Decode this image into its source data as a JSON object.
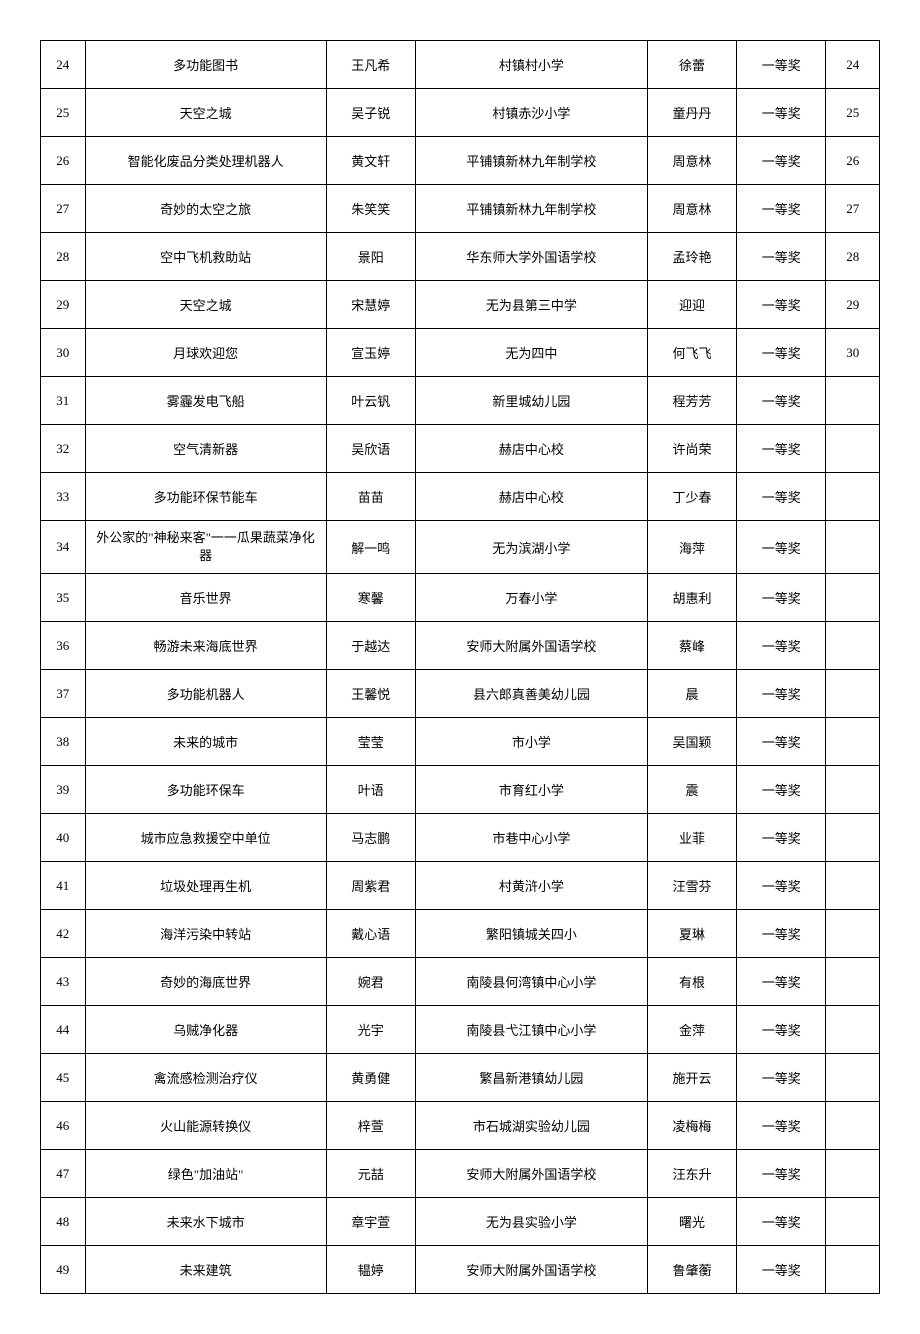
{
  "table": {
    "border_color": "#000000",
    "background_color": "#ffffff",
    "text_color": "#000000",
    "font_size": 13,
    "columns": [
      {
        "key": "idx",
        "width": "5%"
      },
      {
        "key": "title",
        "width": "27%"
      },
      {
        "key": "name",
        "width": "10%"
      },
      {
        "key": "school",
        "width": "26%"
      },
      {
        "key": "teacher",
        "width": "10%"
      },
      {
        "key": "award",
        "width": "10%"
      },
      {
        "key": "num",
        "width": "6%"
      }
    ],
    "rows": [
      {
        "idx": "24",
        "title": "多功能图书",
        "name": "王凡希",
        "school": "村镇村小学",
        "teacher": "徐蕾",
        "award": "一等奖",
        "num": "24"
      },
      {
        "idx": "25",
        "title": "天空之城",
        "name": "吴子锐",
        "school": "村镇赤沙小学",
        "teacher": "童丹丹",
        "award": "一等奖",
        "num": "25"
      },
      {
        "idx": "26",
        "title": "智能化废品分类处理机器人",
        "name": "黄文轩",
        "school": "平铺镇新林九年制学校",
        "teacher": "周意林",
        "award": "一等奖",
        "num": "26"
      },
      {
        "idx": "27",
        "title": "奇妙的太空之旅",
        "name": "朱笑笑",
        "school": "平铺镇新林九年制学校",
        "teacher": "周意林",
        "award": "一等奖",
        "num": "27"
      },
      {
        "idx": "28",
        "title": "空中飞机救助站",
        "name": "景阳",
        "school": "华东师大学外国语学校",
        "teacher": "孟玲艳",
        "award": "一等奖",
        "num": "28"
      },
      {
        "idx": "29",
        "title": "天空之城",
        "name": "宋慧婷",
        "school": "无为县第三中学",
        "teacher": "迎迎",
        "award": "一等奖",
        "num": "29"
      },
      {
        "idx": "30",
        "title": "月球欢迎您",
        "name": "宣玉婷",
        "school": "无为四中",
        "teacher": "何飞飞",
        "award": "一等奖",
        "num": "30"
      },
      {
        "idx": "31",
        "title": "雾霾发电飞船",
        "name": "叶云钒",
        "school": "新里城幼儿园",
        "teacher": "程芳芳",
        "award": "一等奖",
        "num": ""
      },
      {
        "idx": "32",
        "title": "空气清新器",
        "name": "吴欣语",
        "school": "赫店中心校",
        "teacher": "许尚荣",
        "award": "一等奖",
        "num": ""
      },
      {
        "idx": "33",
        "title": "多功能环保节能车",
        "name": "苗苗",
        "school": "赫店中心校",
        "teacher": "丁少春",
        "award": "一等奖",
        "num": ""
      },
      {
        "idx": "34",
        "title": "外公家的\"神秘来客\"一一瓜果蔬菜净化器",
        "name": "解一鸣",
        "school": "无为滨湖小学",
        "teacher": "海萍",
        "award": "一等奖",
        "num": "",
        "multiline": true
      },
      {
        "idx": "35",
        "title": "音乐世界",
        "name": "寒馨",
        "school": "万春小学",
        "teacher": "胡惠利",
        "award": "一等奖",
        "num": ""
      },
      {
        "idx": "36",
        "title": "畅游未来海底世界",
        "name": "于越达",
        "school": "安师大附属外国语学校",
        "teacher": "蔡峰",
        "award": "一等奖",
        "num": ""
      },
      {
        "idx": "37",
        "title": "多功能机器人",
        "name": "王馨悦",
        "school": "县六郎真善美幼儿园",
        "teacher": "晨",
        "award": "一等奖",
        "num": ""
      },
      {
        "idx": "38",
        "title": "未来的城市",
        "name": "莹莹",
        "school": "市小学",
        "teacher": "吴国颖",
        "award": "一等奖",
        "num": ""
      },
      {
        "idx": "39",
        "title": "多功能环保车",
        "name": "叶语",
        "school": "市育红小学",
        "teacher": "震",
        "award": "一等奖",
        "num": ""
      },
      {
        "idx": "40",
        "title": "城市应急救援空中单位",
        "name": "马志鹏",
        "school": "市巷中心小学",
        "teacher": "业菲",
        "award": "一等奖",
        "num": ""
      },
      {
        "idx": "41",
        "title": "垃圾处理再生机",
        "name": "周紫君",
        "school": "村黄浒小学",
        "teacher": "汪雪芬",
        "award": "一等奖",
        "num": ""
      },
      {
        "idx": "42",
        "title": "海洋污染中转站",
        "name": "戴心语",
        "school": "繁阳镇城关四小",
        "teacher": "夏琳",
        "award": "一等奖",
        "num": ""
      },
      {
        "idx": "43",
        "title": "奇妙的海底世界",
        "name": "婉君",
        "school": "南陵县何湾镇中心小学",
        "teacher": "有根",
        "award": "一等奖",
        "num": ""
      },
      {
        "idx": "44",
        "title": "乌贼净化器",
        "name": "光宇",
        "school": "南陵县弋江镇中心小学",
        "teacher": "金萍",
        "award": "一等奖",
        "num": ""
      },
      {
        "idx": "45",
        "title": "禽流感检测治疗仪",
        "name": "黄勇健",
        "school": "繁昌新港镇幼儿园",
        "teacher": "施开云",
        "award": "一等奖",
        "num": ""
      },
      {
        "idx": "46",
        "title": "火山能源转换仪",
        "name": "梓萱",
        "school": "市石城湖实验幼儿园",
        "teacher": "凌梅梅",
        "award": "一等奖",
        "num": ""
      },
      {
        "idx": "47",
        "title": "绿色\"加油站\"",
        "name": "元喆",
        "school": "安师大附属外国语学校",
        "teacher": "汪东升",
        "award": "一等奖",
        "num": ""
      },
      {
        "idx": "48",
        "title": "未来水下城市",
        "name": "章宇萱",
        "school": "无为县实验小学",
        "teacher": "曙光",
        "award": "一等奖",
        "num": ""
      },
      {
        "idx": "49",
        "title": "未来建筑",
        "name": "韫婷",
        "school": "安师大附属外国语学校",
        "teacher": "鲁肇蘅",
        "award": "一等奖",
        "num": ""
      }
    ]
  }
}
